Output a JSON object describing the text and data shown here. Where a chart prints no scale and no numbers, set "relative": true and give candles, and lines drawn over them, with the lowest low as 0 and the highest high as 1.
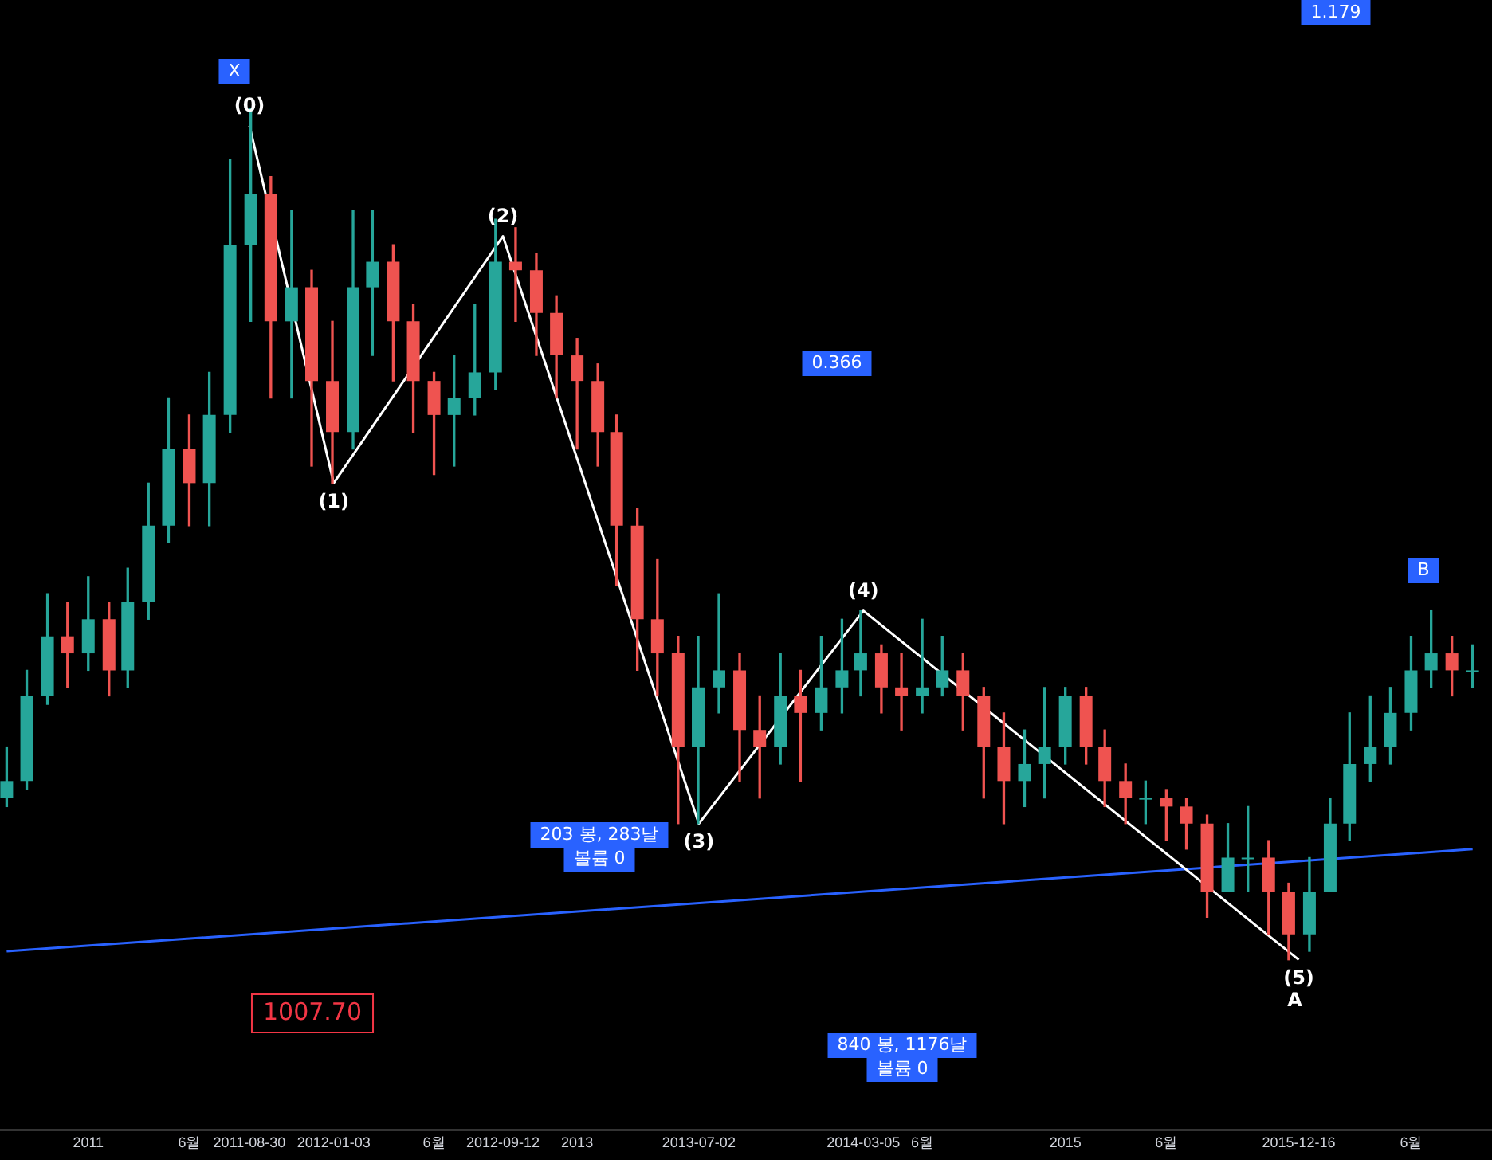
{
  "chart_data": {
    "type": "candlestick",
    "relative": true,
    "tick_labels": "x",
    "grid": false,
    "legend": false,
    "x": [
      "2010-09",
      "2010-10",
      "2010-11",
      "2010-12",
      "2011-01",
      "2011-02",
      "2011-03",
      "2011-04",
      "2011-05",
      "2011-06",
      "2011-07",
      "2011-08",
      "2011-09",
      "2011-10",
      "2011-11",
      "2011-12",
      "2012-01",
      "2012-02",
      "2012-03",
      "2012-04",
      "2012-05",
      "2012-06",
      "2012-07",
      "2012-08",
      "2012-09",
      "2012-10",
      "2012-11",
      "2012-12",
      "2013-01",
      "2013-02",
      "2013-03",
      "2013-04",
      "2013-05",
      "2013-06",
      "2013-07",
      "2013-08",
      "2013-09",
      "2013-10",
      "2013-11",
      "2013-12",
      "2014-01",
      "2014-02",
      "2014-03",
      "2014-04",
      "2014-05",
      "2014-06",
      "2014-07",
      "2014-08",
      "2014-09",
      "2014-10",
      "2014-11",
      "2014-12",
      "2015-01",
      "2015-02",
      "2015-03",
      "2015-04",
      "2015-05",
      "2015-06",
      "2015-07",
      "2015-08",
      "2015-09",
      "2015-10",
      "2015-11",
      "2015-12",
      "2016-01",
      "2016-02",
      "2016-03",
      "2016-04",
      "2016-05",
      "2016-06",
      "2016-07",
      "2016-08",
      "2016-09"
    ],
    "ohlc": [
      [
        0.19,
        0.25,
        0.18,
        0.21
      ],
      [
        0.21,
        0.34,
        0.2,
        0.31
      ],
      [
        0.31,
        0.43,
        0.3,
        0.38
      ],
      [
        0.38,
        0.42,
        0.32,
        0.36
      ],
      [
        0.36,
        0.45,
        0.34,
        0.4
      ],
      [
        0.4,
        0.42,
        0.31,
        0.34
      ],
      [
        0.34,
        0.46,
        0.32,
        0.42
      ],
      [
        0.42,
        0.56,
        0.4,
        0.51
      ],
      [
        0.51,
        0.66,
        0.49,
        0.6
      ],
      [
        0.6,
        0.64,
        0.51,
        0.56
      ],
      [
        0.56,
        0.69,
        0.51,
        0.64
      ],
      [
        0.64,
        0.94,
        0.62,
        0.84
      ],
      [
        0.84,
        1.0,
        0.75,
        0.9
      ],
      [
        0.9,
        0.92,
        0.66,
        0.75
      ],
      [
        0.75,
        0.88,
        0.66,
        0.79
      ],
      [
        0.79,
        0.81,
        0.58,
        0.68
      ],
      [
        0.68,
        0.75,
        0.56,
        0.62
      ],
      [
        0.62,
        0.88,
        0.6,
        0.79
      ],
      [
        0.79,
        0.88,
        0.71,
        0.82
      ],
      [
        0.82,
        0.84,
        0.68,
        0.75
      ],
      [
        0.75,
        0.77,
        0.62,
        0.68
      ],
      [
        0.68,
        0.69,
        0.57,
        0.64
      ],
      [
        0.64,
        0.71,
        0.58,
        0.66
      ],
      [
        0.66,
        0.77,
        0.64,
        0.69
      ],
      [
        0.69,
        0.87,
        0.67,
        0.82
      ],
      [
        0.82,
        0.86,
        0.75,
        0.81
      ],
      [
        0.81,
        0.83,
        0.71,
        0.76
      ],
      [
        0.76,
        0.78,
        0.66,
        0.71
      ],
      [
        0.71,
        0.73,
        0.6,
        0.68
      ],
      [
        0.68,
        0.7,
        0.58,
        0.62
      ],
      [
        0.62,
        0.64,
        0.44,
        0.51
      ],
      [
        0.51,
        0.53,
        0.34,
        0.4
      ],
      [
        0.4,
        0.47,
        0.31,
        0.36
      ],
      [
        0.36,
        0.38,
        0.16,
        0.25
      ],
      [
        0.25,
        0.38,
        0.16,
        0.32
      ],
      [
        0.32,
        0.43,
        0.29,
        0.34
      ],
      [
        0.34,
        0.36,
        0.21,
        0.27
      ],
      [
        0.27,
        0.31,
        0.19,
        0.25
      ],
      [
        0.25,
        0.36,
        0.23,
        0.31
      ],
      [
        0.31,
        0.34,
        0.21,
        0.29
      ],
      [
        0.29,
        0.38,
        0.27,
        0.32
      ],
      [
        0.32,
        0.4,
        0.29,
        0.34
      ],
      [
        0.34,
        0.41,
        0.31,
        0.36
      ],
      [
        0.36,
        0.37,
        0.29,
        0.32
      ],
      [
        0.32,
        0.36,
        0.27,
        0.31
      ],
      [
        0.31,
        0.4,
        0.29,
        0.32
      ],
      [
        0.32,
        0.38,
        0.31,
        0.34
      ],
      [
        0.34,
        0.36,
        0.27,
        0.31
      ],
      [
        0.31,
        0.32,
        0.19,
        0.25
      ],
      [
        0.25,
        0.29,
        0.16,
        0.21
      ],
      [
        0.21,
        0.27,
        0.18,
        0.23
      ],
      [
        0.23,
        0.32,
        0.19,
        0.25
      ],
      [
        0.25,
        0.32,
        0.23,
        0.31
      ],
      [
        0.31,
        0.32,
        0.23,
        0.25
      ],
      [
        0.25,
        0.27,
        0.18,
        0.21
      ],
      [
        0.21,
        0.23,
        0.16,
        0.19
      ],
      [
        0.19,
        0.21,
        0.16,
        0.19
      ],
      [
        0.19,
        0.2,
        0.14,
        0.18
      ],
      [
        0.18,
        0.19,
        0.13,
        0.16
      ],
      [
        0.16,
        0.17,
        0.05,
        0.08
      ],
      [
        0.08,
        0.16,
        0.08,
        0.12
      ],
      [
        0.12,
        0.18,
        0.08,
        0.12
      ],
      [
        0.12,
        0.14,
        0.03,
        0.08
      ],
      [
        0.08,
        0.09,
        0.0,
        0.03
      ],
      [
        0.03,
        0.12,
        0.01,
        0.08
      ],
      [
        0.08,
        0.19,
        0.08,
        0.16
      ],
      [
        0.16,
        0.29,
        0.14,
        0.23
      ],
      [
        0.23,
        0.31,
        0.21,
        0.25
      ],
      [
        0.25,
        0.32,
        0.23,
        0.29
      ],
      [
        0.29,
        0.38,
        0.27,
        0.34
      ],
      [
        0.34,
        0.41,
        0.32,
        0.36
      ],
      [
        0.36,
        0.38,
        0.31,
        0.34
      ],
      [
        0.34,
        0.37,
        0.32,
        0.34
      ]
    ],
    "series": [
      {
        "type": "line",
        "color": "#ffffff",
        "x": [
          "2011-08-30",
          "2012-01-03",
          "2012-09-12",
          "2013-07-02",
          "2014-03-05",
          "2015-12-16"
        ],
        "values": [
          0.98,
          0.56,
          0.85,
          0.16,
          0.41,
          0.0
        ]
      },
      {
        "type": "line",
        "color": "#2962ff",
        "x": [
          "2010-09",
          "2016-09"
        ],
        "values": [
          0.01,
          0.13
        ]
      }
    ],
    "xlim": [
      "2010-08-22",
      "2016-09-30"
    ],
    "xticks": [
      {
        "value": "2011-01-01",
        "label": "2011"
      },
      {
        "value": "2011-06-01",
        "label": "6월"
      },
      "2011-08-30",
      "2012-01-03",
      {
        "value": "2012-06-01",
        "label": "6월"
      },
      "2012-09-12",
      {
        "value": "2013-01-01",
        "label": "2013"
      },
      "2013-07-02",
      "2014-03-05",
      {
        "value": "2014-06-01",
        "label": "6월"
      },
      {
        "value": "2015-01-01",
        "label": "2015"
      },
      {
        "value": "2015-06-01",
        "label": "6월"
      },
      "2015-12-16",
      {
        "value": "2016-06-01",
        "label": "6월"
      }
    ],
    "annotations": [
      "X",
      {
        "text": "(0)",
        "x": "2011-08-30",
        "y": 0.98
      },
      {
        "text": "(1)",
        "x": "2012-01-03",
        "y": 0.56
      },
      {
        "text": "(2)",
        "x": "2012-09-12",
        "y": 0.85
      },
      {
        "text": "(3)",
        "x": "2013-07-02",
        "y": 0.16
      },
      {
        "text": "(4)",
        "x": "2014-03-05",
        "y": 0.41
      },
      {
        "text": "(5)",
        "x": "2015-12-16",
        "y": 0.0
      },
      {
        "text": "A",
        "x": "2015-12-10",
        "y": 0.0
      },
      "B",
      "1.179",
      "0.366",
      "203 봉, 283날",
      "볼륨 0",
      "840 봉, 1176날",
      "볼륨 0",
      "1007.70"
    ]
  }
}
